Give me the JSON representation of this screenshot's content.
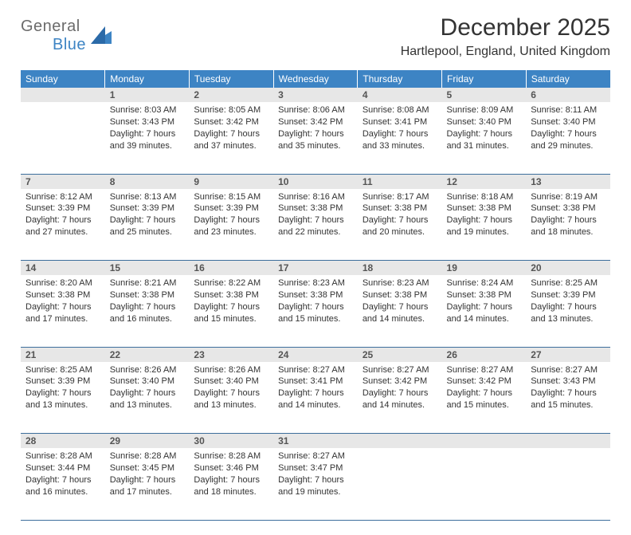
{
  "brand": {
    "part1": "General",
    "part2": "Blue"
  },
  "title": "December 2025",
  "location": "Hartlepool, England, United Kingdom",
  "colors": {
    "header_bg": "#3d84c4",
    "header_text": "#ffffff",
    "daynum_bg": "#e7e7e7",
    "rule": "#3d6e9c",
    "logo_gray": "#6b6b6b",
    "logo_blue": "#3d84c4"
  },
  "weekdays": [
    "Sunday",
    "Monday",
    "Tuesday",
    "Wednesday",
    "Thursday",
    "Friday",
    "Saturday"
  ],
  "weeks": [
    [
      {
        "n": "",
        "sr": "",
        "ss": "",
        "dl": ""
      },
      {
        "n": "1",
        "sr": "Sunrise: 8:03 AM",
        "ss": "Sunset: 3:43 PM",
        "dl": "Daylight: 7 hours and 39 minutes."
      },
      {
        "n": "2",
        "sr": "Sunrise: 8:05 AM",
        "ss": "Sunset: 3:42 PM",
        "dl": "Daylight: 7 hours and 37 minutes."
      },
      {
        "n": "3",
        "sr": "Sunrise: 8:06 AM",
        "ss": "Sunset: 3:42 PM",
        "dl": "Daylight: 7 hours and 35 minutes."
      },
      {
        "n": "4",
        "sr": "Sunrise: 8:08 AM",
        "ss": "Sunset: 3:41 PM",
        "dl": "Daylight: 7 hours and 33 minutes."
      },
      {
        "n": "5",
        "sr": "Sunrise: 8:09 AM",
        "ss": "Sunset: 3:40 PM",
        "dl": "Daylight: 7 hours and 31 minutes."
      },
      {
        "n": "6",
        "sr": "Sunrise: 8:11 AM",
        "ss": "Sunset: 3:40 PM",
        "dl": "Daylight: 7 hours and 29 minutes."
      }
    ],
    [
      {
        "n": "7",
        "sr": "Sunrise: 8:12 AM",
        "ss": "Sunset: 3:39 PM",
        "dl": "Daylight: 7 hours and 27 minutes."
      },
      {
        "n": "8",
        "sr": "Sunrise: 8:13 AM",
        "ss": "Sunset: 3:39 PM",
        "dl": "Daylight: 7 hours and 25 minutes."
      },
      {
        "n": "9",
        "sr": "Sunrise: 8:15 AM",
        "ss": "Sunset: 3:39 PM",
        "dl": "Daylight: 7 hours and 23 minutes."
      },
      {
        "n": "10",
        "sr": "Sunrise: 8:16 AM",
        "ss": "Sunset: 3:38 PM",
        "dl": "Daylight: 7 hours and 22 minutes."
      },
      {
        "n": "11",
        "sr": "Sunrise: 8:17 AM",
        "ss": "Sunset: 3:38 PM",
        "dl": "Daylight: 7 hours and 20 minutes."
      },
      {
        "n": "12",
        "sr": "Sunrise: 8:18 AM",
        "ss": "Sunset: 3:38 PM",
        "dl": "Daylight: 7 hours and 19 minutes."
      },
      {
        "n": "13",
        "sr": "Sunrise: 8:19 AM",
        "ss": "Sunset: 3:38 PM",
        "dl": "Daylight: 7 hours and 18 minutes."
      }
    ],
    [
      {
        "n": "14",
        "sr": "Sunrise: 8:20 AM",
        "ss": "Sunset: 3:38 PM",
        "dl": "Daylight: 7 hours and 17 minutes."
      },
      {
        "n": "15",
        "sr": "Sunrise: 8:21 AM",
        "ss": "Sunset: 3:38 PM",
        "dl": "Daylight: 7 hours and 16 minutes."
      },
      {
        "n": "16",
        "sr": "Sunrise: 8:22 AM",
        "ss": "Sunset: 3:38 PM",
        "dl": "Daylight: 7 hours and 15 minutes."
      },
      {
        "n": "17",
        "sr": "Sunrise: 8:23 AM",
        "ss": "Sunset: 3:38 PM",
        "dl": "Daylight: 7 hours and 15 minutes."
      },
      {
        "n": "18",
        "sr": "Sunrise: 8:23 AM",
        "ss": "Sunset: 3:38 PM",
        "dl": "Daylight: 7 hours and 14 minutes."
      },
      {
        "n": "19",
        "sr": "Sunrise: 8:24 AM",
        "ss": "Sunset: 3:38 PM",
        "dl": "Daylight: 7 hours and 14 minutes."
      },
      {
        "n": "20",
        "sr": "Sunrise: 8:25 AM",
        "ss": "Sunset: 3:39 PM",
        "dl": "Daylight: 7 hours and 13 minutes."
      }
    ],
    [
      {
        "n": "21",
        "sr": "Sunrise: 8:25 AM",
        "ss": "Sunset: 3:39 PM",
        "dl": "Daylight: 7 hours and 13 minutes."
      },
      {
        "n": "22",
        "sr": "Sunrise: 8:26 AM",
        "ss": "Sunset: 3:40 PM",
        "dl": "Daylight: 7 hours and 13 minutes."
      },
      {
        "n": "23",
        "sr": "Sunrise: 8:26 AM",
        "ss": "Sunset: 3:40 PM",
        "dl": "Daylight: 7 hours and 13 minutes."
      },
      {
        "n": "24",
        "sr": "Sunrise: 8:27 AM",
        "ss": "Sunset: 3:41 PM",
        "dl": "Daylight: 7 hours and 14 minutes."
      },
      {
        "n": "25",
        "sr": "Sunrise: 8:27 AM",
        "ss": "Sunset: 3:42 PM",
        "dl": "Daylight: 7 hours and 14 minutes."
      },
      {
        "n": "26",
        "sr": "Sunrise: 8:27 AM",
        "ss": "Sunset: 3:42 PM",
        "dl": "Daylight: 7 hours and 15 minutes."
      },
      {
        "n": "27",
        "sr": "Sunrise: 8:27 AM",
        "ss": "Sunset: 3:43 PM",
        "dl": "Daylight: 7 hours and 15 minutes."
      }
    ],
    [
      {
        "n": "28",
        "sr": "Sunrise: 8:28 AM",
        "ss": "Sunset: 3:44 PM",
        "dl": "Daylight: 7 hours and 16 minutes."
      },
      {
        "n": "29",
        "sr": "Sunrise: 8:28 AM",
        "ss": "Sunset: 3:45 PM",
        "dl": "Daylight: 7 hours and 17 minutes."
      },
      {
        "n": "30",
        "sr": "Sunrise: 8:28 AM",
        "ss": "Sunset: 3:46 PM",
        "dl": "Daylight: 7 hours and 18 minutes."
      },
      {
        "n": "31",
        "sr": "Sunrise: 8:27 AM",
        "ss": "Sunset: 3:47 PM",
        "dl": "Daylight: 7 hours and 19 minutes."
      },
      {
        "n": "",
        "sr": "",
        "ss": "",
        "dl": ""
      },
      {
        "n": "",
        "sr": "",
        "ss": "",
        "dl": ""
      },
      {
        "n": "",
        "sr": "",
        "ss": "",
        "dl": ""
      }
    ]
  ]
}
